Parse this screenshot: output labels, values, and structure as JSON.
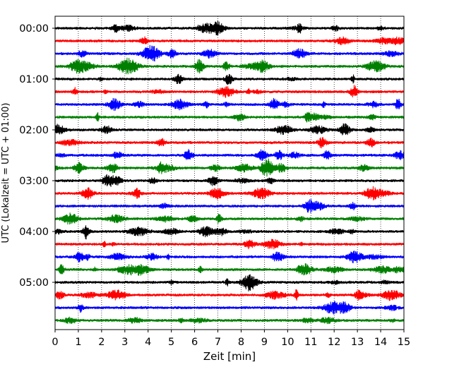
{
  "chart_data": {
    "type": "line",
    "title": "",
    "xlabel": "Zeit  [min]",
    "ylabel": "UTC (Lokalzeit = UTC + 01:00)",
    "xlim": [
      0,
      15
    ],
    "x_ticks": [
      0,
      1,
      2,
      3,
      4,
      5,
      6,
      7,
      8,
      9,
      10,
      11,
      12,
      13,
      14,
      15
    ],
    "y_ticks": [
      "00:00",
      "01:00",
      "02:00",
      "03:00",
      "04:00",
      "05:00"
    ],
    "minutes_per_line": 15,
    "trace_colors": [
      "#000000",
      "#ff0000",
      "#0000ff",
      "#008000"
    ],
    "x_grid": "dotted",
    "series": [
      {
        "start": "00:00",
        "color": "#000000"
      },
      {
        "start": "00:15",
        "color": "#ff0000"
      },
      {
        "start": "00:30",
        "color": "#0000ff"
      },
      {
        "start": "00:45",
        "color": "#008000"
      },
      {
        "start": "01:00",
        "color": "#000000"
      },
      {
        "start": "01:15",
        "color": "#ff0000"
      },
      {
        "start": "01:30",
        "color": "#0000ff"
      },
      {
        "start": "01:45",
        "color": "#008000"
      },
      {
        "start": "02:00",
        "color": "#000000"
      },
      {
        "start": "02:15",
        "color": "#ff0000"
      },
      {
        "start": "02:30",
        "color": "#0000ff"
      },
      {
        "start": "02:45",
        "color": "#008000"
      },
      {
        "start": "03:00",
        "color": "#000000"
      },
      {
        "start": "03:15",
        "color": "#ff0000"
      },
      {
        "start": "03:30",
        "color": "#0000ff"
      },
      {
        "start": "03:45",
        "color": "#008000"
      },
      {
        "start": "04:00",
        "color": "#000000"
      },
      {
        "start": "04:15",
        "color": "#ff0000"
      },
      {
        "start": "04:30",
        "color": "#0000ff"
      },
      {
        "start": "04:45",
        "color": "#008000"
      },
      {
        "start": "05:00",
        "color": "#000000"
      },
      {
        "start": "05:15",
        "color": "#ff0000"
      },
      {
        "start": "05:30",
        "color": "#0000ff"
      },
      {
        "start": "05:45",
        "color": "#008000"
      }
    ]
  }
}
